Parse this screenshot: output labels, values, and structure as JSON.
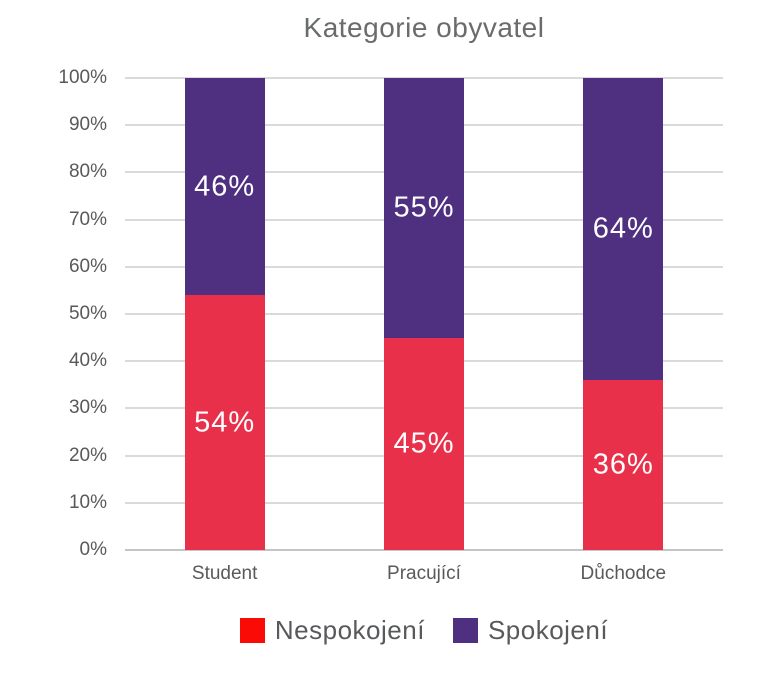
{
  "title": "Kategorie obyvatel",
  "colors": {
    "background": "#ffffff",
    "bar_red": "#e8304b",
    "bar_purple": "#4e2f80",
    "legend_swatch_red": "#fb0b06",
    "legend_swatch_purple": "#4e2f80",
    "gridline": "#dadada",
    "axis_line": "#c4c5c7",
    "axis_text": "#58595b",
    "title_text": "#6a6b6d",
    "bar_label_text": "#ffffff"
  },
  "chart_data": {
    "type": "bar",
    "stacked": true,
    "title": "Kategorie obyvatel",
    "categories": [
      "Student",
      "Pracující",
      "Důchodce"
    ],
    "series": [
      {
        "name": "Nespokojení",
        "color": "#e8304b",
        "swatch_color": "#fb0b06",
        "values": [
          54,
          45,
          36
        ],
        "labels": [
          "54%",
          "45%",
          "36%"
        ]
      },
      {
        "name": "Spokojení",
        "color": "#4e2f80",
        "swatch_color": "#4e2f80",
        "values": [
          46,
          55,
          64
        ],
        "labels": [
          "46%",
          "55%",
          "64%"
        ]
      }
    ],
    "y_ticks": [
      "0%",
      "10%",
      "20%",
      "30%",
      "40%",
      "50%",
      "60%",
      "70%",
      "80%",
      "90%",
      "100%"
    ],
    "ylim": [
      0,
      100
    ],
    "xlabel": "",
    "ylabel": "",
    "grid": true,
    "legend_position": "bottom"
  }
}
